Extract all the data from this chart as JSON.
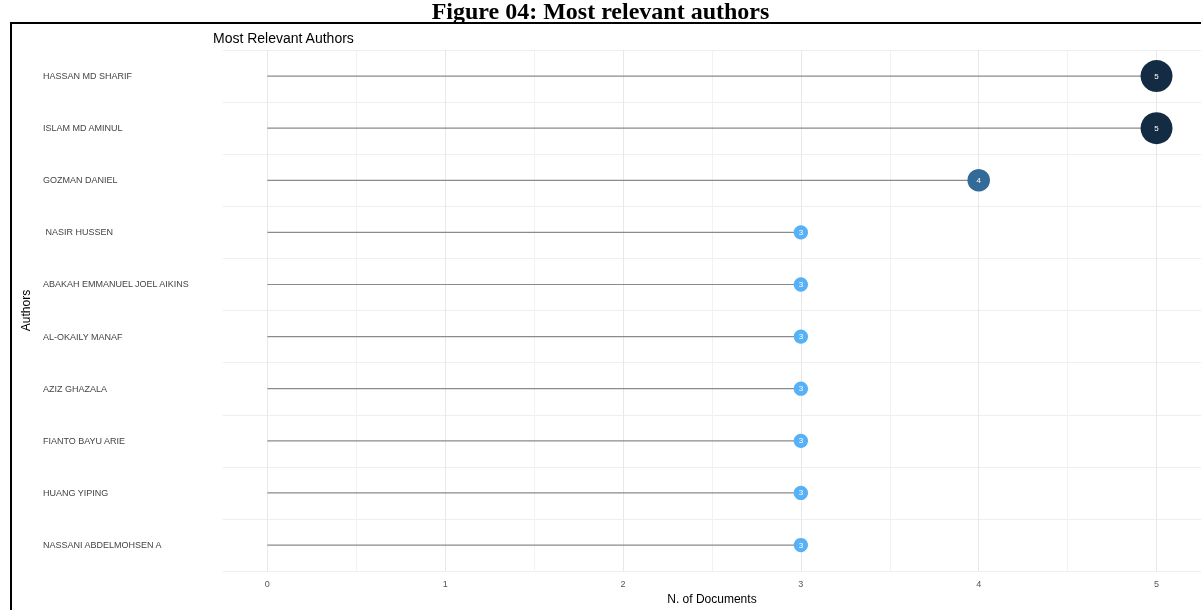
{
  "chart_data": {
    "type": "lollipop",
    "title": "Figure 04: Most relevant authors",
    "subtitle": "Most Relevant Authors",
    "xlabel": "N. of Documents",
    "ylabel": "Authors",
    "orientation": "horizontal",
    "categories": [
      "HASSAN MD SHARIF",
      "ISLAM MD AMINUL",
      "GOZMAN DANIEL",
      " NASIR HUSSEN",
      "ABAKAH EMMANUEL JOEL AIKINS",
      "AL-OKAILY MANAF",
      "AZIZ GHAZALA",
      "FIANTO BAYU ARIE",
      "HUANG YIPING",
      "NASSANI ABDELMOHSEN A"
    ],
    "values": [
      5,
      5,
      4,
      3,
      3,
      3,
      3,
      3,
      3,
      3
    ],
    "colors": [
      "#132b43",
      "#132b43",
      "#336a98",
      "#56b1f7",
      "#56b1f7",
      "#56b1f7",
      "#56b1f7",
      "#56b1f7",
      "#56b1f7",
      "#56b1f7"
    ],
    "sizes": [
      1,
      1,
      0.5,
      0.2,
      0.2,
      0.2,
      0.2,
      0.2,
      0.2,
      0.2
    ],
    "xlim": [
      -0.25,
      5.25
    ],
    "xticks": [
      0,
      1,
      2,
      3,
      4,
      5
    ],
    "grid": true,
    "data_labels": true
  }
}
